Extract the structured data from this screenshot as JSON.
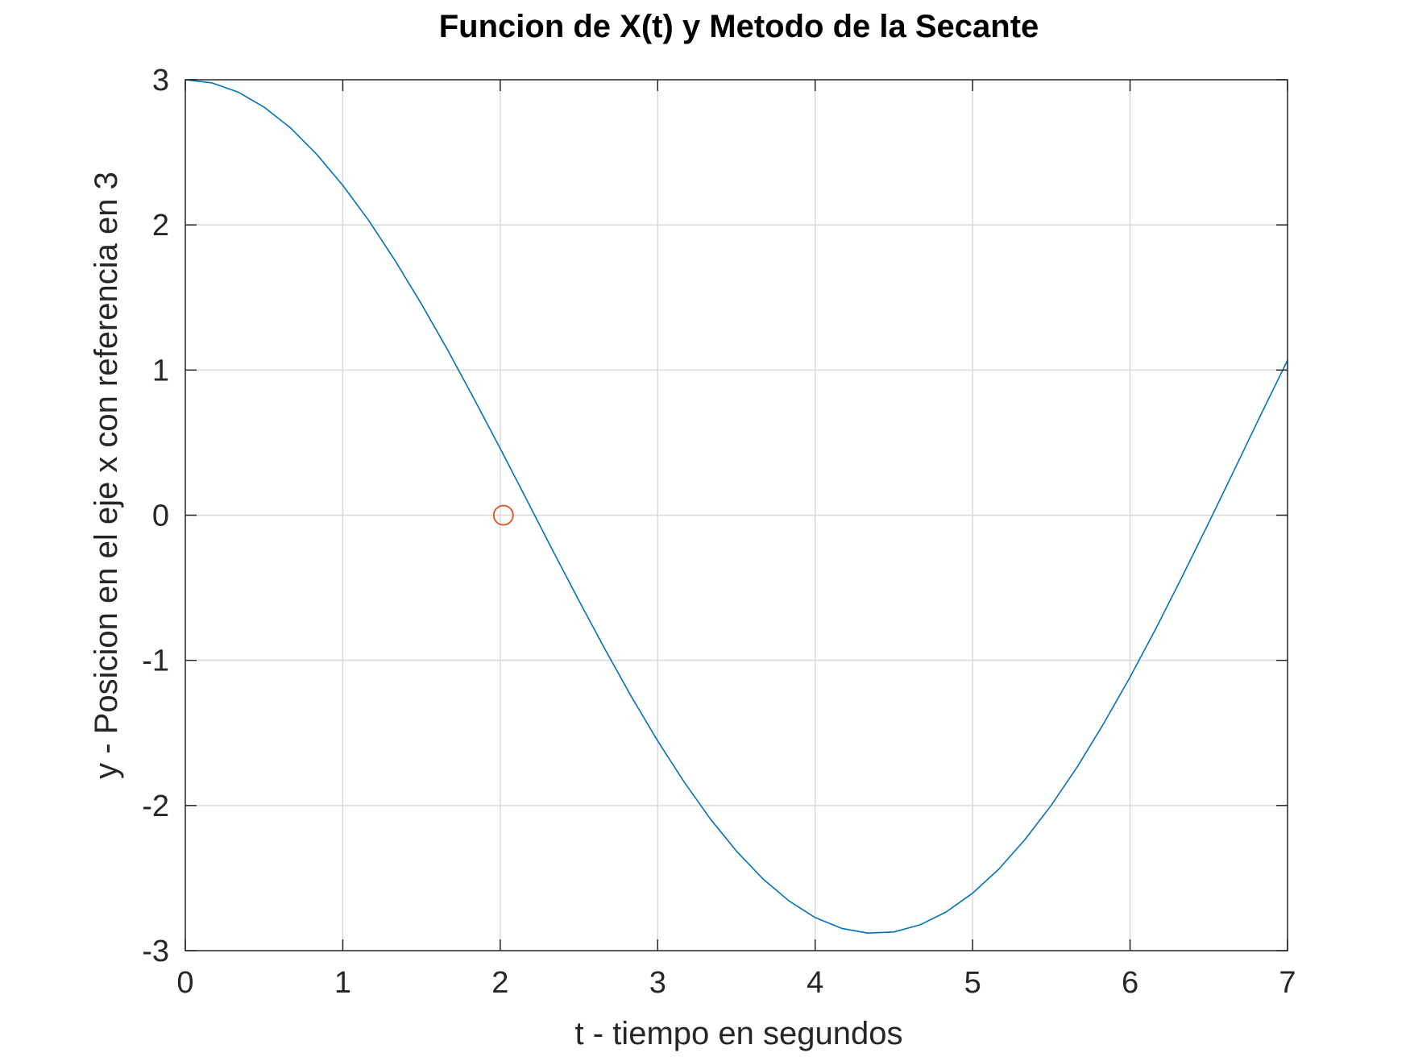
{
  "chart_data": {
    "type": "line",
    "title": "Funcion de X(t) y Metodo de la Secante",
    "xlabel": "t - tiempo en segundos",
    "ylabel": "y - Posicion en el eje x con referencia en 3",
    "xlim": [
      0,
      7
    ],
    "ylim": [
      -3,
      3
    ],
    "grid": true,
    "xticks": [
      0,
      1,
      2,
      3,
      4,
      5,
      6,
      7
    ],
    "yticks": [
      -3,
      -2,
      -1,
      0,
      1,
      2,
      3
    ],
    "xtick_labels": [
      "0",
      "1",
      "2",
      "3",
      "4",
      "5",
      "6",
      "7"
    ],
    "ytick_labels": [
      "-3",
      "-2",
      "-1",
      "0",
      "1",
      "2",
      "3"
    ],
    "series": [
      {
        "kind": "line",
        "color": "#0072bd",
        "x": [
          0.0,
          0.167,
          0.333,
          0.5,
          0.667,
          0.833,
          1.0,
          1.167,
          1.333,
          1.5,
          1.667,
          1.833,
          2.0,
          2.167,
          2.333,
          2.5,
          2.667,
          2.833,
          3.0,
          3.167,
          3.333,
          3.5,
          3.667,
          3.833,
          4.0,
          4.167,
          4.333,
          4.5,
          4.667,
          4.833,
          5.0,
          5.167,
          5.333,
          5.5,
          5.667,
          5.833,
          6.0,
          6.167,
          6.333,
          6.5,
          6.667,
          6.833,
          7.0
        ],
        "y": [
          3.0,
          2.979,
          2.916,
          2.812,
          2.669,
          2.488,
          2.273,
          2.027,
          1.753,
          1.455,
          1.137,
          0.803,
          0.459,
          0.109,
          -0.242,
          -0.589,
          -0.927,
          -1.25,
          -1.555,
          -1.836,
          -2.091,
          -2.314,
          -2.504,
          -2.657,
          -2.772,
          -2.846,
          -2.879,
          -2.871,
          -2.822,
          -2.733,
          -2.604,
          -2.437,
          -2.234,
          -1.997,
          -1.73,
          -1.434,
          -1.115,
          -0.775,
          -0.419,
          -0.051,
          0.323,
          0.698,
          1.068
        ]
      },
      {
        "kind": "marker",
        "marker": "circle",
        "color": "#d95319",
        "x": [
          2.02
        ],
        "y": [
          0.0
        ]
      }
    ]
  }
}
